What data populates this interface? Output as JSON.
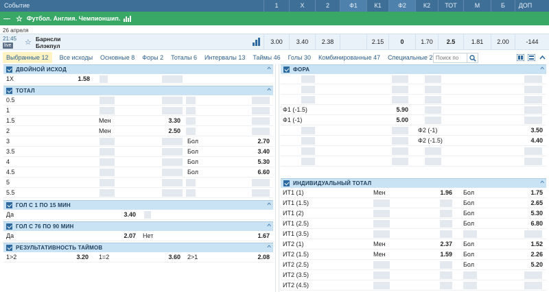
{
  "header": {
    "event_label": "Событие",
    "columns": [
      "1",
      "X",
      "2",
      "Ф1",
      "К1",
      "Ф2",
      "К2",
      "ТОТ",
      "М",
      "Б",
      "ДОП"
    ]
  },
  "league": {
    "title": "Футбол. Англия. Чемпионшип."
  },
  "date": "26 апреля",
  "match": {
    "time": "21:45",
    "live_badge": "live",
    "team1": "Барнсли",
    "team2": "Блэкпул",
    "odds": [
      "3.00",
      "3.40",
      "2.38",
      "",
      "2.15",
      "0",
      "1.70",
      "2.5",
      "1.81",
      "2.00",
      "-144"
    ]
  },
  "tabs": [
    "Выбранные 12",
    "Все исходы",
    "Основные 8",
    "Форы 2",
    "Тоталы 6",
    "Интервалы 13",
    "Таймы 46",
    "Голы 30",
    "Комбинированные 47",
    "Специальные 2"
  ],
  "search": {
    "placeholder": "Поиск по"
  },
  "left": {
    "double": {
      "title": "ДВОЙНОЙ ИСХОД",
      "label": "1X",
      "value": "1.58"
    },
    "total": {
      "title": "ТОТАЛ",
      "rows": [
        {
          "line": "0.5",
          "k1": "",
          "v1": "",
          "k2": "",
          "v2": ""
        },
        {
          "line": "1",
          "k1": "",
          "v1": "",
          "k2": "",
          "v2": ""
        },
        {
          "line": "1.5",
          "k1": "Мен",
          "v1": "3.30",
          "k2": "",
          "v2": ""
        },
        {
          "line": "2",
          "k1": "Мен",
          "v1": "2.50",
          "k2": "",
          "v2": ""
        },
        {
          "line": "3",
          "k1": "",
          "v1": "",
          "k2": "Бол",
          "v2": "2.70"
        },
        {
          "line": "3.5",
          "k1": "",
          "v1": "",
          "k2": "Бол",
          "v2": "3.40"
        },
        {
          "line": "4",
          "k1": "",
          "v1": "",
          "k2": "Бол",
          "v2": "5.30"
        },
        {
          "line": "4.5",
          "k1": "",
          "v1": "",
          "k2": "Бол",
          "v2": "6.60"
        },
        {
          "line": "5",
          "k1": "",
          "v1": "",
          "k2": "",
          "v2": ""
        },
        {
          "line": "5.5",
          "k1": "",
          "v1": "",
          "k2": "",
          "v2": ""
        }
      ]
    },
    "goal1": {
      "title": "ГОЛ С 1 ПО 15 МИН",
      "label": "Да",
      "value": "3.40"
    },
    "goal2": {
      "title": "ГОЛ С 76 ПО 90 МИН",
      "label1": "Да",
      "value1": "2.07",
      "label2": "Нет",
      "value2": "1.67"
    },
    "halves": {
      "title": "РЕЗУЛЬТАТИВНОСТЬ ТАЙМОВ",
      "l1": "1>2",
      "v1": "3.20",
      "l2": "1=2",
      "v2": "3.60",
      "l3": "2>1",
      "v3": "2.08"
    }
  },
  "right": {
    "fora": {
      "title": "ФОРА",
      "rows": [
        {
          "l1": "",
          "v1": "",
          "l2": "",
          "v2": ""
        },
        {
          "l1": "",
          "v1": "",
          "l2": "",
          "v2": ""
        },
        {
          "l1": "",
          "v1": "",
          "l2": "",
          "v2": ""
        },
        {
          "l1": "Ф1 (-1.5)",
          "v1": "5.90",
          "l2": "",
          "v2": ""
        },
        {
          "l1": "Ф1 (-1)",
          "v1": "5.00",
          "l2": "",
          "v2": ""
        },
        {
          "l1": "",
          "v1": "",
          "l2": "Ф2 (-1)",
          "v2": "3.50"
        },
        {
          "l1": "",
          "v1": "",
          "l2": "Ф2 (-1.5)",
          "v2": "4.40"
        },
        {
          "l1": "",
          "v1": "",
          "l2": "",
          "v2": ""
        },
        {
          "l1": "",
          "v1": "",
          "l2": "",
          "v2": ""
        }
      ]
    },
    "individual": {
      "title": "ИНДИВИДУАЛЬНЫЙ ТОТАЛ",
      "rows": [
        {
          "l": "ИТ1 (1)",
          "k1": "Мен",
          "v1": "1.96",
          "k2": "Бол",
          "v2": "1.75"
        },
        {
          "l": "ИТ1 (1.5)",
          "k1": "",
          "v1": "",
          "k2": "Бол",
          "v2": "2.65"
        },
        {
          "l": "ИТ1 (2)",
          "k1": "",
          "v1": "",
          "k2": "Бол",
          "v2": "5.30"
        },
        {
          "l": "ИТ1 (2.5)",
          "k1": "",
          "v1": "",
          "k2": "Бол",
          "v2": "6.80"
        },
        {
          "l": "ИТ1 (3.5)",
          "k1": "",
          "v1": "",
          "k2": "",
          "v2": ""
        },
        {
          "l": "ИТ2 (1)",
          "k1": "Мен",
          "v1": "2.37",
          "k2": "Бол",
          "v2": "1.52"
        },
        {
          "l": "ИТ2 (1.5)",
          "k1": "Мен",
          "v1": "1.59",
          "k2": "Бол",
          "v2": "2.26"
        },
        {
          "l": "ИТ2 (2.5)",
          "k1": "",
          "v1": "",
          "k2": "Бол",
          "v2": "5.20"
        },
        {
          "l": "ИТ2 (3.5)",
          "k1": "",
          "v1": "",
          "k2": "",
          "v2": ""
        },
        {
          "l": "ИТ2 (4.5)",
          "k1": "",
          "v1": "",
          "k2": "",
          "v2": ""
        }
      ]
    }
  },
  "colors": {
    "header": "#3e6f97",
    "league": "#39a867",
    "section": "#c9e3f5",
    "tab_active": "#fff3c4"
  }
}
